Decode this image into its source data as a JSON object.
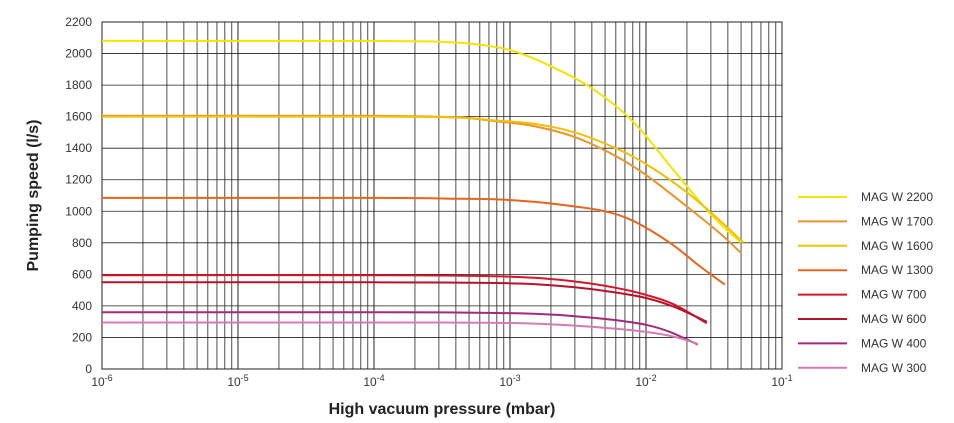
{
  "chart_data": {
    "type": "line",
    "xlabel": "High vacuum pressure (mbar)",
    "ylabel": "Pumping speed (l/s)",
    "x_scale": "log",
    "xlim": [
      1e-06,
      0.1
    ],
    "ylim": [
      0,
      2200
    ],
    "x_ticks": [
      {
        "base": "10",
        "exp": "-6"
      },
      {
        "base": "10",
        "exp": "-5"
      },
      {
        "base": "10",
        "exp": "-4"
      },
      {
        "base": "10",
        "exp": "-3"
      },
      {
        "base": "10",
        "exp": "-2"
      },
      {
        "base": "10",
        "exp": "-1"
      }
    ],
    "y_ticks": [
      "0",
      "200",
      "400",
      "600",
      "800",
      "1000",
      "1200",
      "1400",
      "1600",
      "1800",
      "2000",
      "2200"
    ],
    "grid": true,
    "legend_position": "right",
    "series": [
      {
        "name": "MAG W 2200",
        "color": "#f5e300",
        "x": [
          1e-06,
          0.0001,
          0.0004,
          0.0008,
          0.0012,
          0.002,
          0.004,
          0.008,
          0.016,
          0.03,
          0.05
        ],
        "y": [
          2080,
          2080,
          2070,
          2040,
          2000,
          1920,
          1780,
          1570,
          1260,
          980,
          800
        ]
      },
      {
        "name": "MAG W 1700",
        "color": "#e8952a",
        "x": [
          1e-06,
          0.0001,
          0.0004,
          0.0008,
          0.0015,
          0.003,
          0.006,
          0.01,
          0.02,
          0.035,
          0.05
        ],
        "y": [
          1605,
          1605,
          1595,
          1570,
          1540,
          1470,
          1350,
          1230,
          1030,
          860,
          735
        ]
      },
      {
        "name": "MAG W 1600",
        "color": "#f2c000",
        "x": [
          1e-06,
          0.0001,
          0.0004,
          0.0008,
          0.0015,
          0.003,
          0.006,
          0.01,
          0.02,
          0.035,
          0.052
        ],
        "y": [
          1600,
          1600,
          1595,
          1575,
          1555,
          1500,
          1400,
          1300,
          1120,
          940,
          800
        ]
      },
      {
        "name": "MAG W 1300",
        "color": "#e8641a",
        "x": [
          1e-06,
          0.0001,
          0.0004,
          0.0008,
          0.0015,
          0.003,
          0.005,
          0.008,
          0.015,
          0.025,
          0.038
        ],
        "y": [
          1085,
          1085,
          1080,
          1075,
          1060,
          1030,
          1000,
          940,
          800,
          650,
          535
        ]
      },
      {
        "name": "MAG W 700",
        "color": "#d4172b",
        "x": [
          1e-06,
          0.0001,
          0.0004,
          0.0008,
          0.0015,
          0.003,
          0.006,
          0.01,
          0.016,
          0.028
        ],
        "y": [
          595,
          595,
          592,
          588,
          578,
          555,
          515,
          470,
          410,
          290
        ]
      },
      {
        "name": "MAG W 600",
        "color": "#b5132b",
        "x": [
          1e-06,
          0.0001,
          0.0004,
          0.0008,
          0.0015,
          0.003,
          0.006,
          0.01,
          0.016,
          0.028
        ],
        "y": [
          550,
          550,
          548,
          545,
          538,
          518,
          485,
          450,
          395,
          300
        ]
      },
      {
        "name": "MAG W 400",
        "color": "#a32a7a",
        "x": [
          1e-06,
          0.0001,
          0.0004,
          0.0008,
          0.0015,
          0.003,
          0.006,
          0.01,
          0.015,
          0.024
        ],
        "y": [
          360,
          360,
          358,
          355,
          350,
          335,
          310,
          280,
          235,
          155
        ]
      },
      {
        "name": "MAG W 300",
        "color": "#d47ab5",
        "x": [
          1e-06,
          0.0001,
          0.0004,
          0.0008,
          0.0015,
          0.003,
          0.006,
          0.01,
          0.016,
          0.024
        ],
        "y": [
          295,
          295,
          294,
          292,
          288,
          275,
          255,
          235,
          205,
          160
        ]
      }
    ]
  }
}
